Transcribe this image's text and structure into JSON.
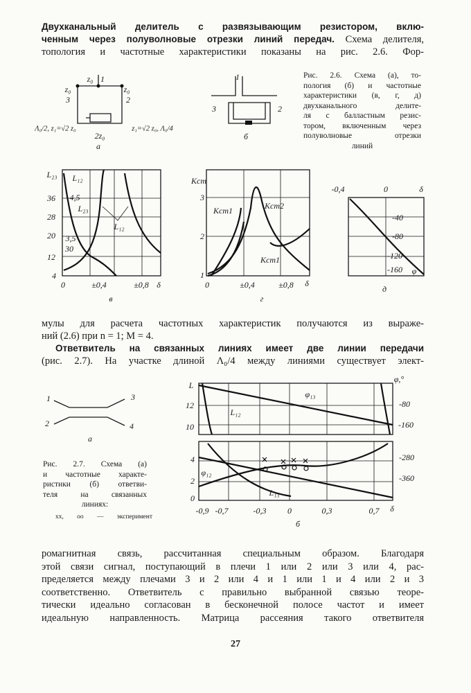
{
  "paragraph_1": {
    "bold_lines": [
      "Двухканальный делитель с развязывающим резистором, вклю-",
      "ченным через полуволновые отрезки линий передач."
    ],
    "lines": [
      "Схема делителя,",
      "топология и частотные характеристики показаны на рис. 2.6. Фор-"
    ]
  },
  "fig_2_6": {
    "caption": [
      "Рис. 2.6. Схема (а), то-",
      "пология (б) и частотные",
      "характеристики (в, г, д)",
      "двухканального делите-",
      "ля с балластным резис-",
      "тором, включенным через",
      "полуволновые отрезки",
      "линий"
    ],
    "a": [
      "z₀",
      "1",
      "z₀",
      "z₀",
      "3",
      "2",
      "Λ₀/2, z₁=√2 z₀",
      "2z₀",
      "z₁=√2 z₀, Λ₀/4",
      "а"
    ],
    "b": [
      "1",
      "3",
      "2",
      "б"
    ],
    "v": [
      "L₂₃",
      "L₁₂",
      "36",
      "4,5",
      "L₂₃",
      "28",
      "L₁₂",
      "20",
      "3,5",
      "12",
      "30",
      "4",
      "0",
      "±0,4",
      "±0,8",
      "δ",
      "в"
    ],
    "g": [
      "Kст",
      "3",
      "Kст1",
      "Kст2",
      "2",
      "Kст1",
      "1",
      "0",
      "±0,4",
      "±0,8",
      "δ",
      "г"
    ],
    "d": [
      "-0,4",
      "0",
      "δ",
      "-40",
      "-80",
      "-120",
      "-160",
      "φ",
      "д"
    ]
  },
  "paragraph_2": {
    "lines": [
      "мулы для расчета частотных характеристик получаются из выраже-",
      "ний (2.6) при n = 1; M = 4."
    ]
  },
  "paragraph_3": {
    "bold_lines": [
      "Ответвитель на связанных линиях имеет две линии передачи"
    ],
    "lines": [
      "(рис. 2.7). На участке длиной Λ₀/4 между линиями существует элект-"
    ]
  },
  "fig_2_7": {
    "caption": [
      "Рис. 2.7. Схема (а)",
      "и частотные характе-",
      "ристики (б) ответви-",
      "теля на связанных",
      "линиях:",
      "xx, oo — эксперимент"
    ],
    "a": [
      "1",
      "3",
      "2",
      "4",
      "а"
    ],
    "b": [
      "L",
      "φ,°",
      "12",
      "10",
      "-80",
      "-160",
      "φ₁₃",
      "L₁₂",
      "4",
      "2",
      "0",
      "-280",
      "-360",
      "φ₁₂",
      "L₁₃",
      "-0,9",
      "-0,7",
      "-0,3",
      "0",
      "0,3",
      "0,7",
      "δ",
      "б"
    ]
  },
  "paragraph_4": {
    "lines": [
      "ромагнитная связь, рассчитанная специальным образом. Благодаря",
      "этой связи сигнал, поступающий в плечи 1 или 2 или 3 или 4, рас-",
      "пределяется между плечами 3 и 2 или 4 и 1 или 1 и 4 или 2 и 3",
      "соответственно. Ответвитель с правильно выбранной связью теоре-",
      "тически идеально согласован в бесконечной полосе частот и имеет",
      "идеальную направленность. Матрица рассеяния такого ответвителя"
    ]
  },
  "page_number": "27"
}
